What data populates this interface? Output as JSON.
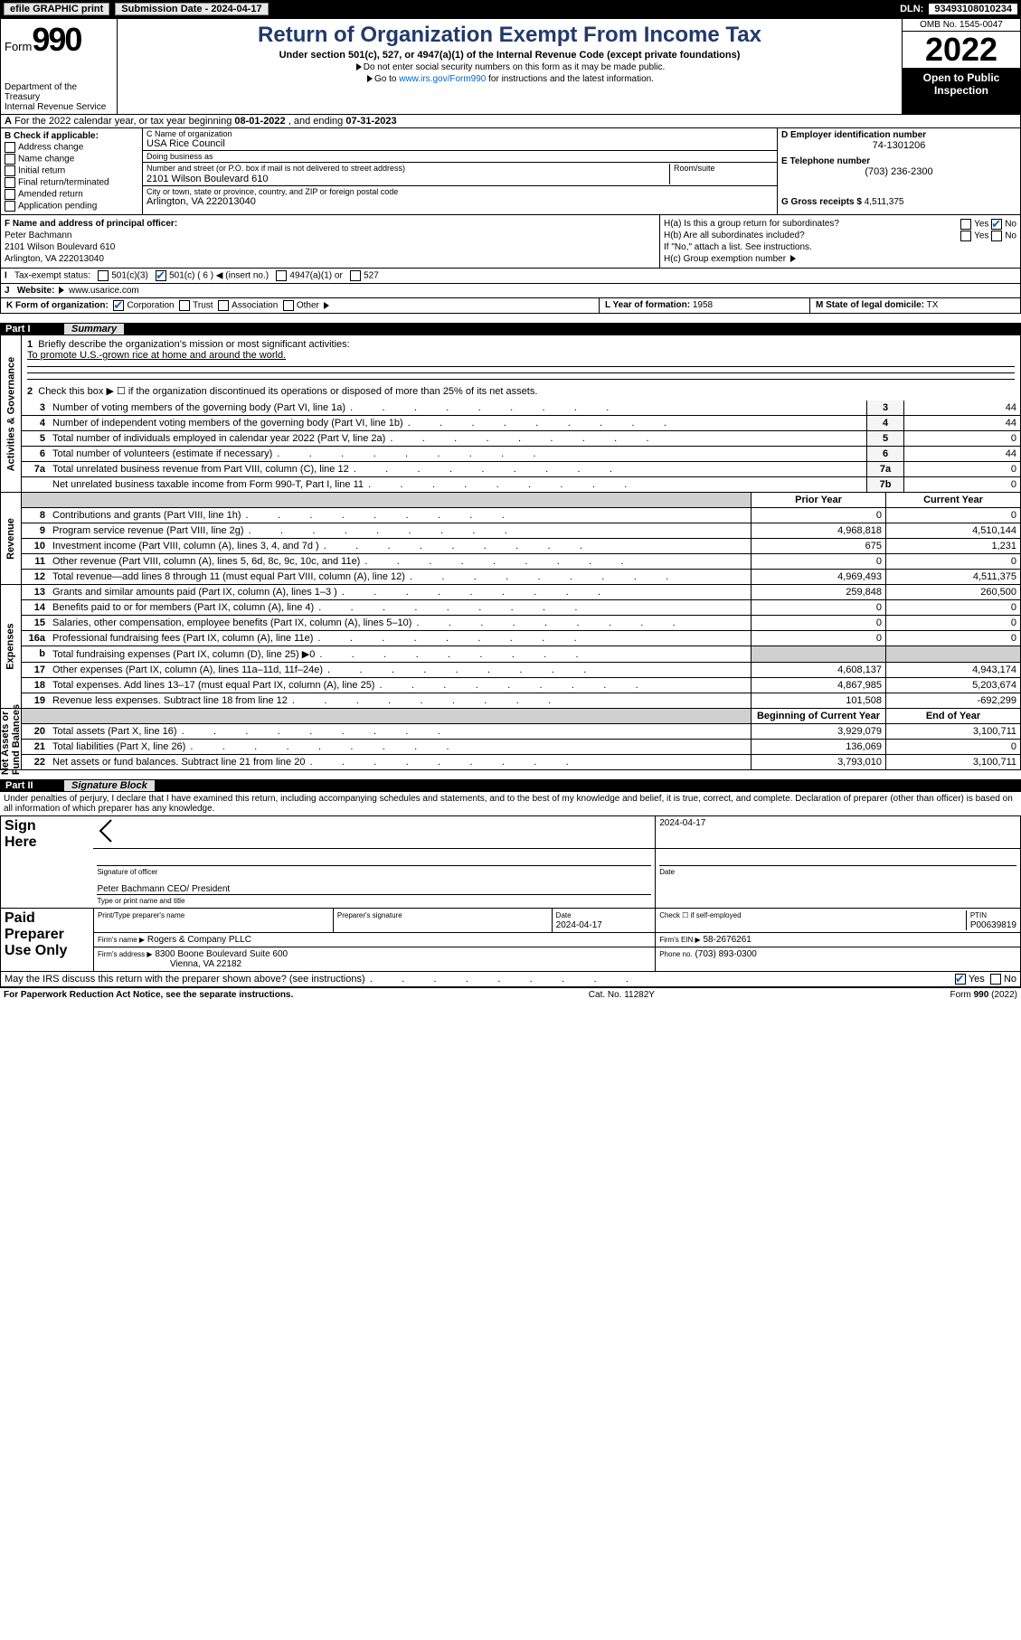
{
  "topbar": {
    "print": "efile GRAPHIC print",
    "sub_label": "Submission Date - 2024-04-17",
    "dln_label": "DLN:",
    "dln": "93493108010234"
  },
  "hdr": {
    "form_word": "Form",
    "form_num": "990",
    "dept": "Department of the Treasury\nInternal Revenue Service",
    "title": "Return of Organization Exempt From Income Tax",
    "sub1": "Under section 501(c), 527, or 4947(a)(1) of the Internal Revenue Code (except private foundations)",
    "sub2": "Do not enter social security numbers on this form as it may be made public.",
    "sub3_pre": "Go to ",
    "sub3_link": "www.irs.gov/Form990",
    "sub3_post": " for instructions and the latest information.",
    "omb": "OMB No. 1545-0047",
    "year": "2022",
    "open_pub": "Open to Public\nInspection"
  },
  "A": {
    "text_pre": "For the 2022 calendar year, or tax year beginning ",
    "begin": "08-01-2022",
    "mid": " , and ending ",
    "end": "07-31-2023"
  },
  "B": {
    "label": "B Check if applicable:",
    "opts": [
      "Address change",
      "Name change",
      "Initial return",
      "Final return/terminated",
      "Amended return",
      "Application pending"
    ]
  },
  "C": {
    "name_lbl": "C Name of organization",
    "name": "USA Rice Council",
    "dba_lbl": "Doing business as",
    "dba": "",
    "addr_lbl": "Number and street (or P.O. box if mail is not delivered to street address)",
    "addr": "2101 Wilson Boulevard 610",
    "room_lbl": "Room/suite",
    "city_lbl": "City or town, state or province, country, and ZIP or foreign postal code",
    "city": "Arlington, VA  222013040"
  },
  "D": {
    "lbl": "D Employer identification number",
    "val": "74-1301206"
  },
  "E": {
    "lbl": "E Telephone number",
    "val": "(703) 236-2300"
  },
  "G": {
    "lbl": "G Gross receipts $",
    "val": "4,511,375"
  },
  "F": {
    "lbl": "F  Name and address of principal officer:",
    "name": "Peter Bachmann",
    "addr1": "2101 Wilson Boulevard 610",
    "addr2": "Arlington, VA  222013040"
  },
  "H": {
    "a": "H(a)  Is this a group return for subordinates?",
    "a_yes": "Yes",
    "a_no": "No",
    "a_checked": "No",
    "b": "H(b)  Are all subordinates included?",
    "b_yes": "Yes",
    "b_no": "No",
    "b_note": "If \"No,\" attach a list. See instructions.",
    "c": "H(c)  Group exemption number"
  },
  "I": {
    "lbl": "Tax-exempt status:",
    "opts": [
      "501(c)(3)",
      "501(c) ( 6 ) ◀ (insert no.)",
      "4947(a)(1) or",
      "527"
    ],
    "checked_idx": 1
  },
  "J": {
    "lbl": "Website:",
    "val": "www.usarice.com"
  },
  "K": {
    "lbl": "K Form of organization:",
    "opts": [
      "Corporation",
      "Trust",
      "Association",
      "Other"
    ],
    "checked_idx": 0
  },
  "L": {
    "lbl": "L Year of formation:",
    "val": "1958"
  },
  "M": {
    "lbl": "M State of legal domicile:",
    "val": "TX"
  },
  "partI": {
    "hdr_part": "Part I",
    "hdr_title": "Summary",
    "sidetabs": [
      "Activities & Governance",
      "Revenue",
      "Expenses",
      "Net Assets or\nFund Balances"
    ],
    "line1_lbl": "Briefly describe the organization's mission or most significant activities:",
    "line1_val": "To promote U.S.-grown rice at home and around the world.",
    "line2": "Check this box ▶ ☐  if the organization discontinued its operations or disposed of more than 25% of its net assets.",
    "rows_simple": [
      {
        "n": "3",
        "t": "Number of voting members of the governing body (Part VI, line 1a)",
        "b": "3",
        "v": "44"
      },
      {
        "n": "4",
        "t": "Number of independent voting members of the governing body (Part VI, line 1b)",
        "b": "4",
        "v": "44"
      },
      {
        "n": "5",
        "t": "Total number of individuals employed in calendar year 2022 (Part V, line 2a)",
        "b": "5",
        "v": "0"
      },
      {
        "n": "6",
        "t": "Total number of volunteers (estimate if necessary)",
        "b": "6",
        "v": "44"
      },
      {
        "n": "7a",
        "t": "Total unrelated business revenue from Part VIII, column (C), line 12",
        "b": "7a",
        "v": "0"
      },
      {
        "n": "",
        "t": "Net unrelated business taxable income from Form 990-T, Part I, line 11",
        "b": "7b",
        "v": "0"
      }
    ],
    "col_prior": "Prior Year",
    "col_curr": "Current Year",
    "revenue": [
      {
        "n": "8",
        "t": "Contributions and grants (Part VIII, line 1h)",
        "p": "0",
        "c": "0"
      },
      {
        "n": "9",
        "t": "Program service revenue (Part VIII, line 2g)",
        "p": "4,968,818",
        "c": "4,510,144"
      },
      {
        "n": "10",
        "t": "Investment income (Part VIII, column (A), lines 3, 4, and 7d )",
        "p": "675",
        "c": "1,231"
      },
      {
        "n": "11",
        "t": "Other revenue (Part VIII, column (A), lines 5, 6d, 8c, 9c, 10c, and 11e)",
        "p": "0",
        "c": "0"
      },
      {
        "n": "12",
        "t": "Total revenue—add lines 8 through 11 (must equal Part VIII, column (A), line 12)",
        "p": "4,969,493",
        "c": "4,511,375"
      }
    ],
    "expenses": [
      {
        "n": "13",
        "t": "Grants and similar amounts paid (Part IX, column (A), lines 1–3 )",
        "p": "259,848",
        "c": "260,500"
      },
      {
        "n": "14",
        "t": "Benefits paid to or for members (Part IX, column (A), line 4)",
        "p": "0",
        "c": "0"
      },
      {
        "n": "15",
        "t": "Salaries, other compensation, employee benefits (Part IX, column (A), lines 5–10)",
        "p": "0",
        "c": "0"
      },
      {
        "n": "16a",
        "t": "Professional fundraising fees (Part IX, column (A), line 11e)",
        "p": "0",
        "c": "0"
      },
      {
        "n": "b",
        "t": "Total fundraising expenses (Part IX, column (D), line 25) ▶0",
        "p": "",
        "c": "",
        "shade": true
      },
      {
        "n": "17",
        "t": "Other expenses (Part IX, column (A), lines 11a–11d, 11f–24e)",
        "p": "4,608,137",
        "c": "4,943,174"
      },
      {
        "n": "18",
        "t": "Total expenses. Add lines 13–17 (must equal Part IX, column (A), line 25)",
        "p": "4,867,985",
        "c": "5,203,674"
      },
      {
        "n": "19",
        "t": "Revenue less expenses. Subtract line 18 from line 12",
        "p": "101,508",
        "c": "-692,299"
      }
    ],
    "col_boy": "Beginning of Current Year",
    "col_eoy": "End of Year",
    "netassets": [
      {
        "n": "20",
        "t": "Total assets (Part X, line 16)",
        "p": "3,929,079",
        "c": "3,100,711"
      },
      {
        "n": "21",
        "t": "Total liabilities (Part X, line 26)",
        "p": "136,069",
        "c": "0"
      },
      {
        "n": "22",
        "t": "Net assets or fund balances. Subtract line 21 from line 20",
        "p": "3,793,010",
        "c": "3,100,711"
      }
    ]
  },
  "partII": {
    "hdr_part": "Part II",
    "hdr_title": "Signature Block",
    "decl": "Under penalties of perjury, I declare that I have examined this return, including accompanying schedules and statements, and to the best of my knowledge and belief, it is true, correct, and complete. Declaration of preparer (other than officer) is based on all information of which preparer has any knowledge.",
    "sign_here": "Sign\nHere",
    "sig_officer_lbl": "Signature of officer",
    "sig_date": "2024-04-17",
    "date_lbl": "Date",
    "officer_name": "Peter Bachmann CEO/ President",
    "officer_name_lbl": "Type or print name and title",
    "paid": "Paid\nPreparer\nUse Only",
    "prep_name_lbl": "Print/Type preparer's name",
    "prep_sig_lbl": "Preparer's signature",
    "prep_date_lbl": "Date",
    "prep_date": "2024-04-17",
    "self_lbl": "Check ☐ if self-employed",
    "ptin_lbl": "PTIN",
    "ptin": "P00639819",
    "firm_name_lbl": "Firm's name ▶",
    "firm_name": "Rogers & Company PLLC",
    "firm_ein_lbl": "Firm's EIN ▶",
    "firm_ein": "58-2676261",
    "firm_addr_lbl": "Firm's address ▶",
    "firm_addr1": "8300 Boone Boulevard Suite 600",
    "firm_addr2": "Vienna, VA  22182",
    "phone_lbl": "Phone no.",
    "phone": "(703) 893-0300",
    "discuss": "May the IRS discuss this return with the preparer shown above? (see instructions)",
    "discuss_yes": "Yes",
    "discuss_no": "No",
    "discuss_checked": "Yes"
  },
  "footer": {
    "left": "For Paperwork Reduction Act Notice, see the separate instructions.",
    "mid": "Cat. No. 11282Y",
    "right": "Form 990 (2022)"
  },
  "colors": {
    "title": "#223a6b",
    "check": "#1a5fb4",
    "link": "#0066cc",
    "shade": "#d0d0d0"
  }
}
